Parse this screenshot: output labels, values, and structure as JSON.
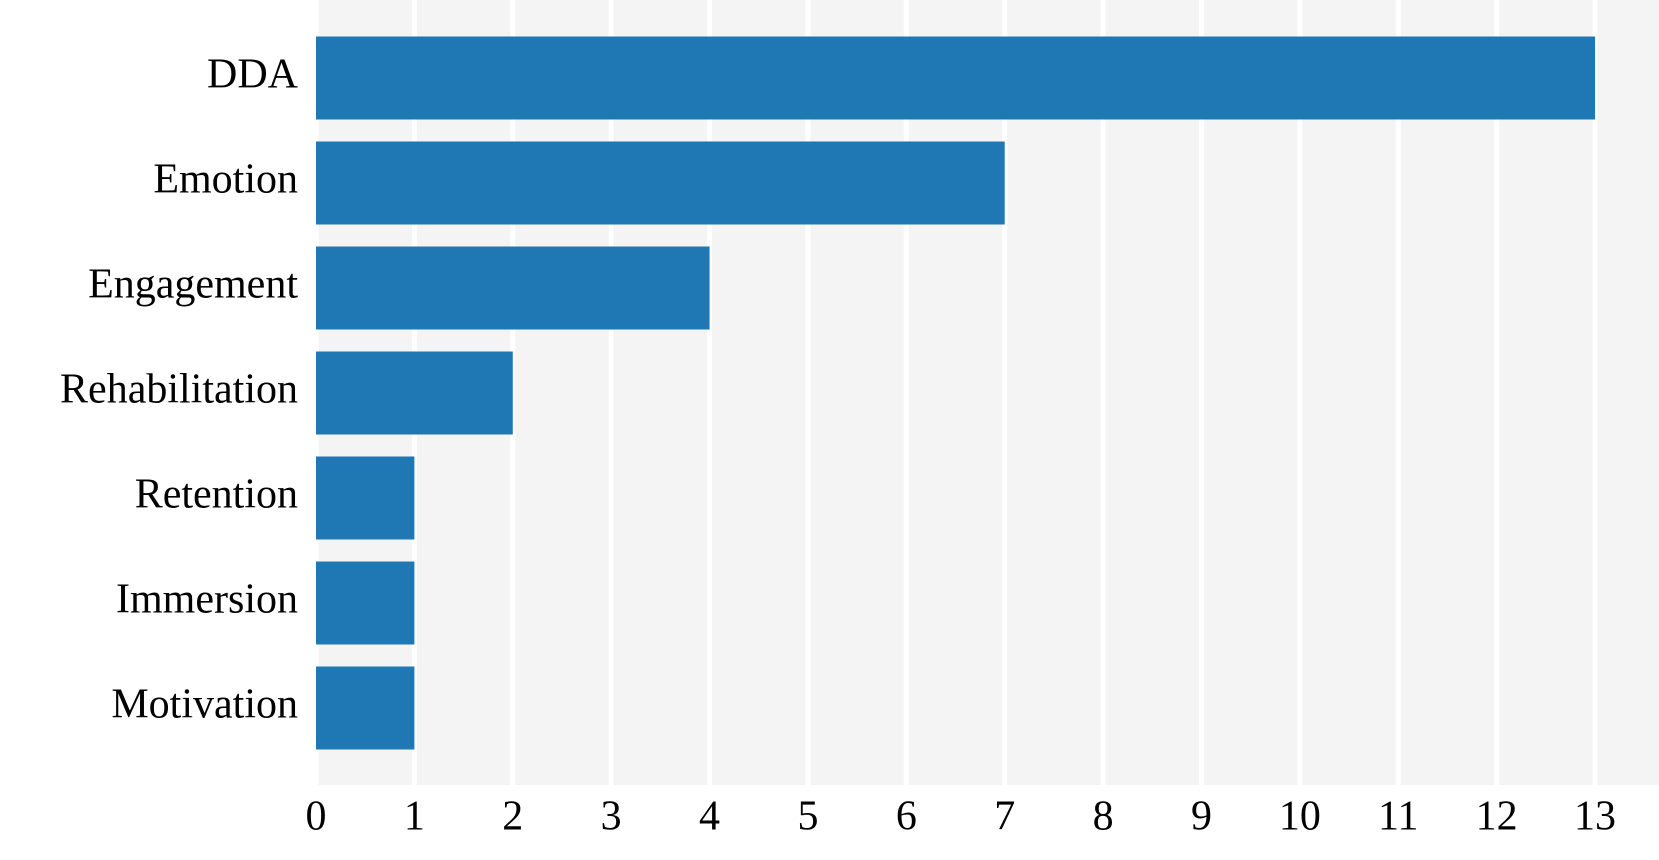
{
  "chart_data": {
    "type": "barh",
    "categories": [
      "DDA",
      "Emotion",
      "Engagement",
      "Rehabilitation",
      "Retention",
      "Immersion",
      "Motivation"
    ],
    "values": [
      13,
      7,
      4,
      2,
      1,
      1,
      1
    ],
    "color": "#1f77b4",
    "xlim": [
      0,
      13.65
    ],
    "xticks": [
      0,
      1,
      2,
      3,
      4,
      5,
      6,
      7,
      8,
      9,
      10,
      11,
      12,
      13
    ],
    "grid": true
  }
}
